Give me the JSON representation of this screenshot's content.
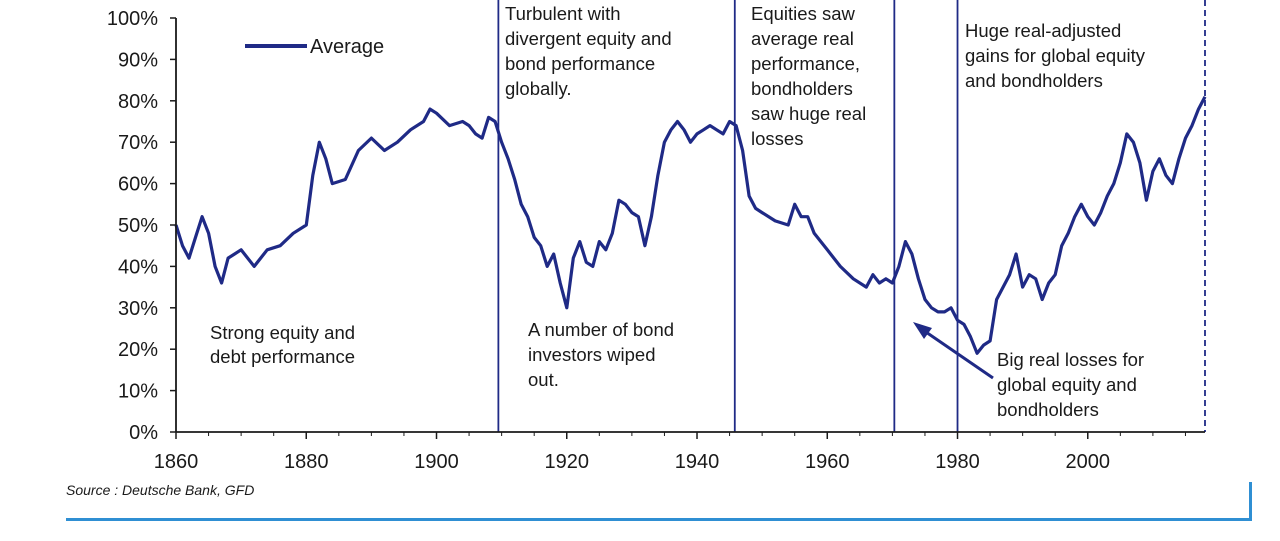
{
  "chart_data": {
    "type": "line",
    "title": "",
    "xlabel": "",
    "ylabel": "",
    "xlim": [
      1860,
      2018
    ],
    "ylim": [
      0,
      100
    ],
    "y_tick_labels": [
      "0%",
      "10%",
      "20%",
      "30%",
      "40%",
      "50%",
      "60%",
      "70%",
      "80%",
      "90%",
      "100%"
    ],
    "x_tick_labels": [
      "1860",
      "1880",
      "1900",
      "1920",
      "1940",
      "1960",
      "1980",
      "2000"
    ],
    "legend": "top-left",
    "grid": false,
    "colors": {
      "series": "#1f2a86",
      "divider": "#1f2a86",
      "axis": "#1a1a1a"
    },
    "series": [
      {
        "name": "Average",
        "x": [
          1860,
          1861,
          1862,
          1863,
          1864,
          1865,
          1866,
          1867,
          1868,
          1869,
          1870,
          1872,
          1874,
          1876,
          1878,
          1880,
          1881,
          1882,
          1883,
          1884,
          1886,
          1888,
          1890,
          1892,
          1894,
          1896,
          1898,
          1899,
          1900,
          1902,
          1904,
          1905,
          1906,
          1907,
          1908,
          1909,
          1910,
          1911,
          1912,
          1913,
          1914,
          1915,
          1916,
          1917,
          1918,
          1919,
          1920,
          1921,
          1922,
          1923,
          1924,
          1925,
          1926,
          1927,
          1928,
          1929,
          1930,
          1931,
          1932,
          1933,
          1934,
          1935,
          1936,
          1937,
          1938,
          1939,
          1940,
          1941,
          1942,
          1943,
          1944,
          1945,
          1946,
          1947,
          1948,
          1949,
          1950,
          1952,
          1954,
          1955,
          1956,
          1957,
          1958,
          1960,
          1962,
          1964,
          1966,
          1967,
          1968,
          1969,
          1970,
          1971,
          1972,
          1973,
          1974,
          1975,
          1976,
          1977,
          1978,
          1979,
          1980,
          1981,
          1982,
          1983,
          1984,
          1985,
          1986,
          1987,
          1988,
          1989,
          1990,
          1991,
          1992,
          1993,
          1994,
          1995,
          1996,
          1997,
          1998,
          1999,
          2000,
          2001,
          2002,
          2003,
          2004,
          2005,
          2006,
          2007,
          2008,
          2009,
          2010,
          2011,
          2012,
          2013,
          2014,
          2015,
          2016,
          2017,
          2018
        ],
        "values": [
          50,
          45,
          42,
          47,
          52,
          48,
          40,
          36,
          42,
          43,
          44,
          40,
          44,
          45,
          48,
          50,
          62,
          70,
          66,
          60,
          61,
          68,
          71,
          68,
          70,
          73,
          75,
          78,
          77,
          74,
          75,
          74,
          72,
          71,
          76,
          75,
          70,
          66,
          61,
          55,
          52,
          47,
          45,
          40,
          43,
          36,
          30,
          42,
          46,
          41,
          40,
          46,
          44,
          48,
          56,
          55,
          53,
          52,
          45,
          52,
          62,
          70,
          73,
          75,
          73,
          70,
          72,
          73,
          74,
          73,
          72,
          75,
          74,
          68,
          57,
          54,
          53,
          51,
          50,
          55,
          52,
          52,
          48,
          44,
          40,
          37,
          35,
          38,
          36,
          37,
          36,
          40,
          46,
          43,
          37,
          32,
          30,
          29,
          29,
          30,
          27,
          26,
          23,
          19,
          21,
          22,
          32,
          35,
          38,
          43,
          35,
          38,
          37,
          32,
          36,
          38,
          45,
          48,
          52,
          55,
          52,
          50,
          53,
          57,
          60,
          65,
          72,
          70,
          65,
          56,
          63,
          66,
          62,
          60,
          66,
          71,
          74,
          78,
          81
        ]
      }
    ],
    "dividers": [
      1909.5,
      1945.8,
      1970.3,
      1980
    ],
    "dashed_divider": 2018,
    "annotations": [
      {
        "id": "strong",
        "lines": [
          "Strong equity and",
          "debt performance"
        ]
      },
      {
        "id": "turbulent",
        "lines": [
          "Turbulent with",
          "divergent equity and",
          "bond performance",
          "globally."
        ]
      },
      {
        "id": "wiped",
        "lines": [
          "A number of bond",
          "investors wiped",
          "out."
        ]
      },
      {
        "id": "equities",
        "lines": [
          "Equities saw",
          "average real",
          "performance,",
          "bondholders",
          "saw huge real",
          "losses"
        ]
      },
      {
        "id": "huge",
        "lines": [
          "Huge real-adjusted",
          "gains for global equity",
          "and bondholders"
        ]
      },
      {
        "id": "bigloss",
        "lines": [
          "Big real losses for",
          "global equity and",
          "bondholders"
        ]
      }
    ]
  },
  "source_text": "Source : Deutsche Bank, GFD"
}
